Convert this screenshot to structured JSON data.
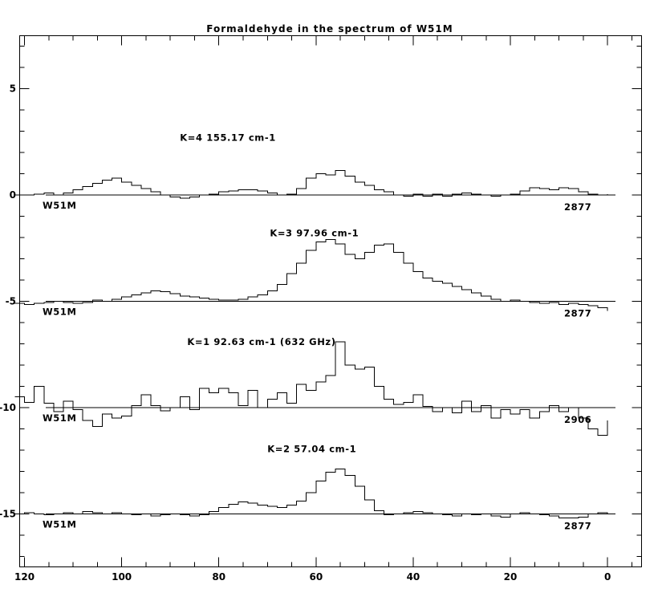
{
  "chart_data": {
    "type": "line",
    "title": "Formaldehyde in the spectrum of W51M",
    "xlabel": "",
    "ylabel": "",
    "xlim": [
      121,
      -7
    ],
    "ylim": [
      -17.5,
      7.5
    ],
    "x_ticks": [
      120,
      100,
      80,
      60,
      40,
      20,
      0
    ],
    "x_minor_step": 5,
    "y_ticks": [
      5,
      0,
      -5,
      -10,
      -15
    ],
    "y_minor_step": 1,
    "grid": false,
    "series": [
      {
        "baseline": 0,
        "label": "K=4 155.17 cm-1",
        "label_pos": [
          88,
          2.55
        ],
        "left_tag": "W51M",
        "right_tag": "2877",
        "x": [
          122,
          120,
          118,
          116,
          114,
          112,
          110,
          108,
          106,
          104,
          102,
          100,
          98,
          96,
          94,
          92,
          90,
          88,
          86,
          84,
          82,
          80,
          78,
          76,
          74,
          72,
          70,
          68,
          66,
          64,
          62,
          60,
          58,
          56,
          54,
          52,
          50,
          48,
          46,
          44,
          42,
          40,
          38,
          36,
          34,
          32,
          30,
          28,
          26,
          24,
          22,
          20,
          18,
          16,
          14,
          12,
          10,
          8,
          6,
          4,
          2,
          0
        ],
        "y": [
          0,
          0,
          0.05,
          0.1,
          0,
          0.1,
          0.25,
          0.4,
          0.55,
          0.7,
          0.8,
          0.6,
          0.45,
          0.3,
          0.15,
          0,
          -0.1,
          -0.15,
          -0.1,
          0,
          0.05,
          0.15,
          0.2,
          0.25,
          0.25,
          0.2,
          0.1,
          0,
          0.05,
          0.3,
          0.8,
          1,
          0.95,
          1.15,
          0.9,
          0.6,
          0.45,
          0.25,
          0.15,
          0,
          -0.05,
          0.05,
          -0.05,
          0.05,
          -0.05,
          0.05,
          0.1,
          0.05,
          0,
          -0.05,
          0,
          0.05,
          0.2,
          0.35,
          0.3,
          0.25,
          0.35,
          0.3,
          0.15,
          0.05,
          0,
          0.05
        ]
      },
      {
        "baseline": -5,
        "label": "K=3 97.96 cm-1",
        "label_pos": [
          69.5,
          -1.95
        ],
        "left_tag": "W51M",
        "right_tag": "2877",
        "x": [
          122,
          120,
          118,
          116,
          114,
          112,
          110,
          108,
          106,
          104,
          102,
          100,
          98,
          96,
          94,
          92,
          90,
          88,
          86,
          84,
          82,
          80,
          78,
          76,
          74,
          72,
          70,
          68,
          66,
          64,
          62,
          60,
          58,
          56,
          54,
          52,
          50,
          48,
          46,
          44,
          42,
          40,
          38,
          36,
          34,
          32,
          30,
          28,
          26,
          24,
          22,
          20,
          18,
          16,
          14,
          12,
          10,
          8,
          6,
          4,
          2,
          0
        ],
        "y": [
          -5.1,
          -5.15,
          -5.1,
          -5.05,
          -5,
          -5.05,
          -5.1,
          -5.05,
          -4.95,
          -5,
          -4.9,
          -4.8,
          -4.7,
          -4.6,
          -4.5,
          -4.55,
          -4.65,
          -4.75,
          -4.8,
          -4.85,
          -4.9,
          -4.95,
          -4.95,
          -4.9,
          -4.8,
          -4.7,
          -4.5,
          -4.2,
          -3.7,
          -3.2,
          -2.6,
          -2.2,
          -2.1,
          -2.3,
          -2.8,
          -3,
          -2.7,
          -2.35,
          -2.3,
          -2.7,
          -3.2,
          -3.6,
          -3.9,
          -4.05,
          -4.15,
          -4.3,
          -4.45,
          -4.6,
          -4.75,
          -4.9,
          -5,
          -4.95,
          -5,
          -5.05,
          -5.1,
          -5.05,
          -5.15,
          -5.1,
          -5.15,
          -5.2,
          -5.3,
          -5.45
        ]
      },
      {
        "baseline": -10,
        "label": "K=1 92.63 cm-1 (632 GHz)",
        "label_pos": [
          86.5,
          -7.05
        ],
        "left_tag": "W51M",
        "right_tag": "2906",
        "x": [
          122,
          120,
          118,
          116,
          114,
          112,
          110,
          108,
          106,
          104,
          102,
          100,
          98,
          96,
          94,
          92,
          90,
          88,
          86,
          84,
          82,
          80,
          78,
          76,
          74,
          72,
          70,
          68,
          66,
          64,
          62,
          60,
          58,
          56,
          54,
          52,
          50,
          48,
          46,
          44,
          42,
          40,
          38,
          36,
          34,
          32,
          30,
          28,
          26,
          24,
          22,
          20,
          18,
          16,
          14,
          12,
          10,
          8,
          6,
          4,
          2,
          0
        ],
        "y": [
          -9.5,
          -9.75,
          -9,
          -9.8,
          -10.2,
          -9.7,
          -10.1,
          -10.6,
          -10.9,
          -10.3,
          -10.5,
          -10.4,
          -9.9,
          -9.4,
          -9.9,
          -10.15,
          -10,
          -9.5,
          -10.1,
          -9.1,
          -9.3,
          -9.1,
          -9.3,
          -9.9,
          -9.2,
          -10,
          -9.6,
          -9.3,
          -9.8,
          -8.9,
          -9.2,
          -8.8,
          -8.5,
          -6.9,
          -8,
          -8.2,
          -8.1,
          -9,
          -9.6,
          -9.85,
          -9.75,
          -9.4,
          -9.95,
          -10.2,
          -10,
          -10.25,
          -9.7,
          -10.2,
          -9.9,
          -10.5,
          -10.1,
          -10.3,
          -10.1,
          -10.5,
          -10.2,
          -9.9,
          -10.2,
          -10,
          -10.5,
          -11,
          -11.3,
          -10.6
        ]
      },
      {
        "baseline": -15,
        "label": "K=2 57.04 cm-1",
        "label_pos": [
          70,
          -12.1
        ],
        "left_tag": "W51M",
        "right_tag": "2877",
        "x": [
          122,
          120,
          118,
          116,
          114,
          112,
          110,
          108,
          106,
          104,
          102,
          100,
          98,
          96,
          94,
          92,
          90,
          88,
          86,
          84,
          82,
          80,
          78,
          76,
          74,
          72,
          70,
          68,
          66,
          64,
          62,
          60,
          58,
          56,
          54,
          52,
          50,
          48,
          46,
          44,
          42,
          40,
          38,
          36,
          34,
          32,
          30,
          28,
          26,
          24,
          22,
          20,
          18,
          16,
          14,
          12,
          10,
          8,
          6,
          4,
          2,
          0
        ],
        "y": [
          -15,
          -14.95,
          -15,
          -15.05,
          -15,
          -14.95,
          -15,
          -14.9,
          -14.95,
          -15,
          -14.95,
          -15,
          -15.05,
          -15,
          -15.1,
          -15.05,
          -15,
          -15.05,
          -15.1,
          -15.05,
          -14.9,
          -14.7,
          -14.55,
          -14.45,
          -14.5,
          -14.6,
          -14.65,
          -14.7,
          -14.6,
          -14.4,
          -14,
          -13.45,
          -13.05,
          -12.9,
          -13.2,
          -13.7,
          -14.35,
          -14.85,
          -15.05,
          -15,
          -14.95,
          -14.9,
          -14.95,
          -15,
          -15.05,
          -15.1,
          -15,
          -15.05,
          -15,
          -15.1,
          -15.15,
          -15,
          -14.95,
          -15,
          -15.05,
          -15.1,
          -15.2,
          -15.2,
          -15.15,
          -15,
          -14.95,
          -15
        ]
      }
    ]
  }
}
